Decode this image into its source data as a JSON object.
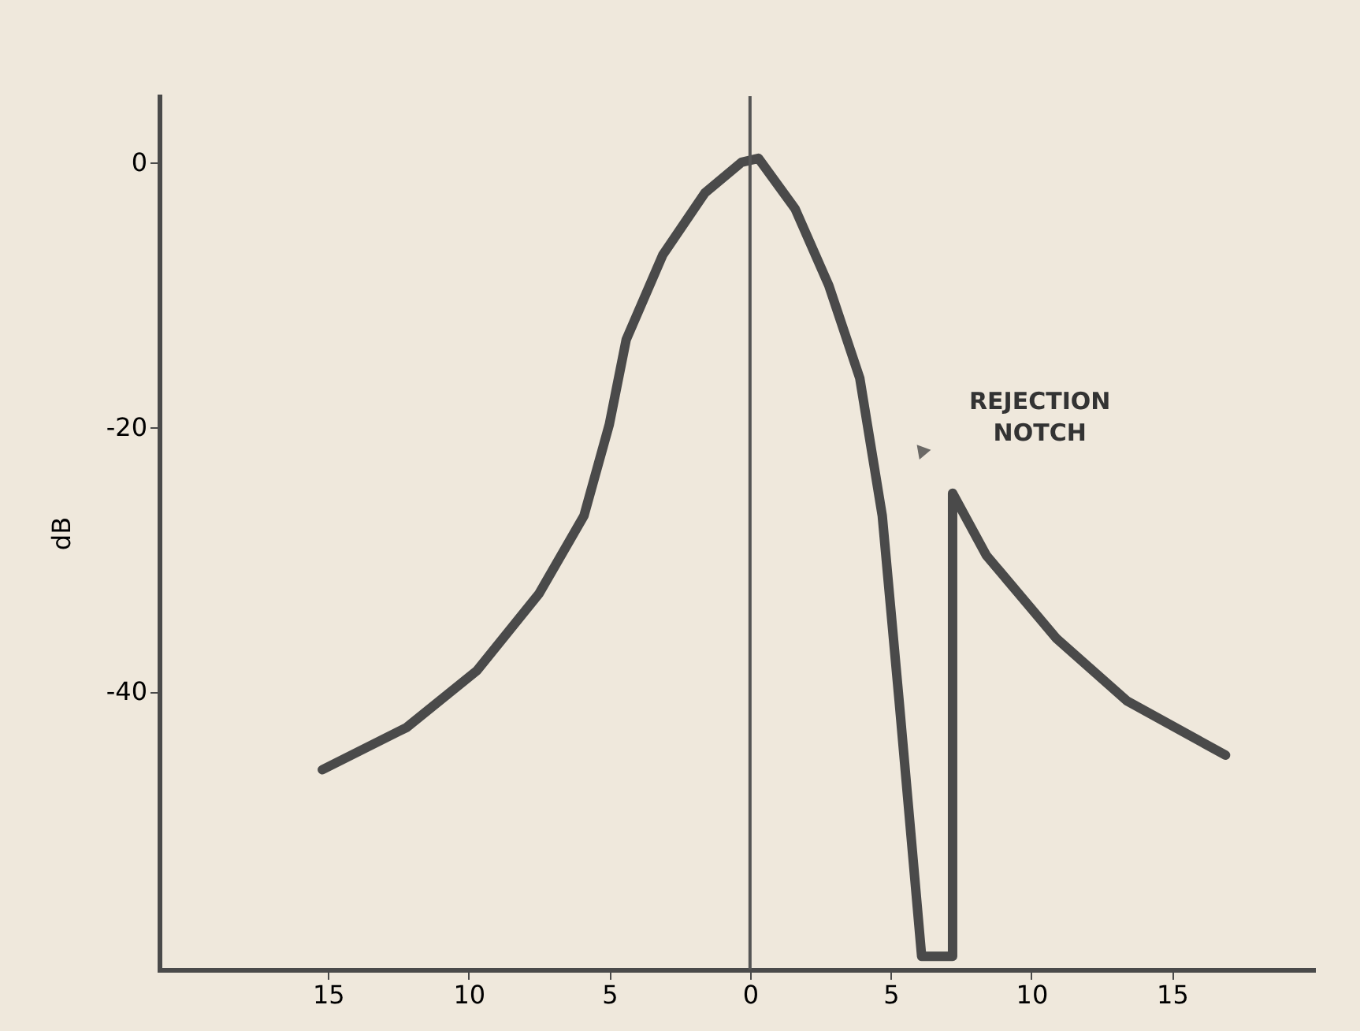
{
  "chart_data": {
    "type": "line",
    "ylabel": "dB",
    "x": [
      -15.2,
      -12.2,
      -9.7,
      -7.5,
      -5.9,
      -5.0,
      -4.4,
      -3.1,
      -1.6,
      -0.3,
      0.3,
      1.6,
      2.8,
      3.9,
      4.7,
      5.3,
      6.1,
      7.2,
      7.2,
      8.4,
      10.9,
      13.4,
      16.9
    ],
    "series": [
      {
        "color": "#4a4a4a",
        "values": [
          -45.9,
          -42.7,
          -38.4,
          -32.6,
          -26.7,
          -19.8,
          -13.4,
          -7,
          -2.3,
          0,
          0.3,
          -3.5,
          -9.3,
          -16.3,
          -26.7,
          -40.7,
          -60,
          -60,
          -25,
          -29.7,
          -36,
          -40.7,
          -44.8
        ]
      }
    ],
    "xlim": [
      -21,
      20
    ],
    "ylim": [
      -61,
      5
    ],
    "xticks": [
      {
        "value": -15,
        "label": "15"
      },
      {
        "value": -10,
        "label": "10"
      },
      {
        "value": -5,
        "label": "5"
      },
      0,
      5,
      10,
      15
    ],
    "yticks": [
      0,
      -20,
      -40
    ],
    "ref_lines": [
      {
        "axis": "x",
        "value": 0,
        "color": "#555555"
      }
    ],
    "annotations": [
      {
        "text": "REJECTION\nNOTCH",
        "x": 6.1,
        "y": -22
      }
    ],
    "grid": false,
    "marker": "none",
    "line_style": "solid"
  }
}
